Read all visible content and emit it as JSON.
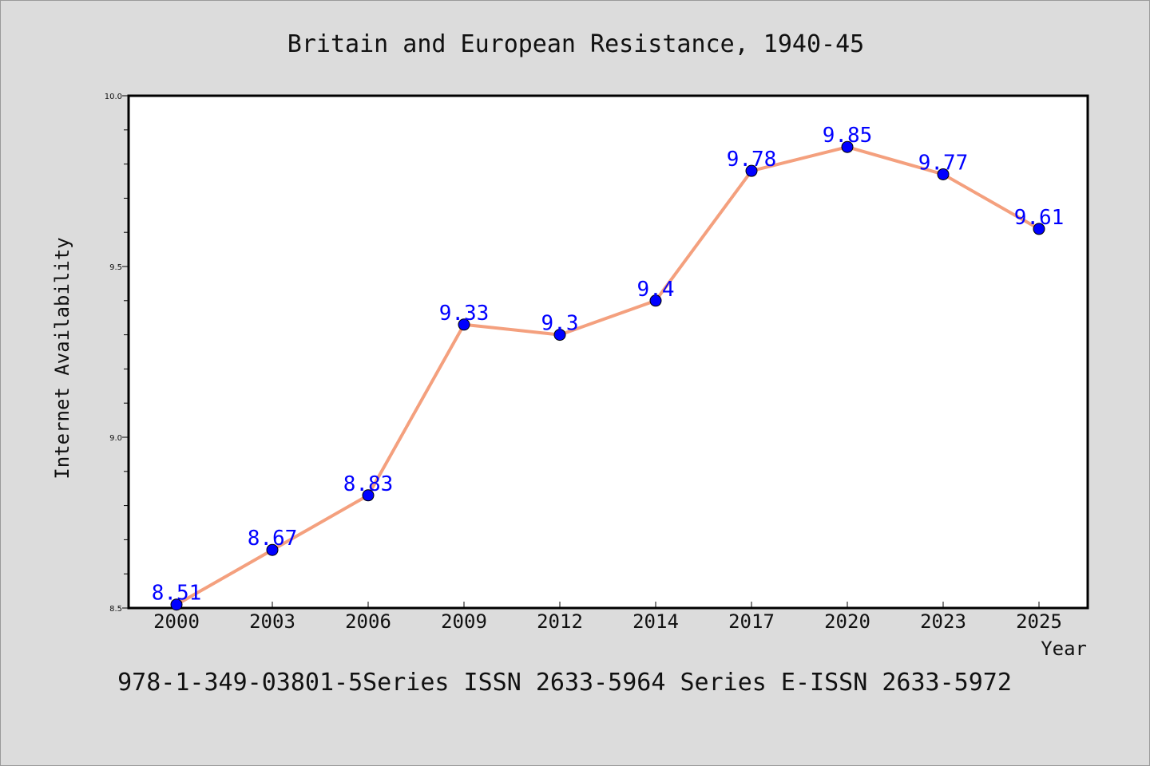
{
  "chart_data": {
    "type": "line",
    "title": "Britain and European Resistance, 1940-45",
    "xlabel": "Year",
    "ylabel": "Internet Availability",
    "categories": [
      "2000",
      "2003",
      "2006",
      "2009",
      "2012",
      "2014",
      "2017",
      "2020",
      "2023",
      "2025"
    ],
    "values": [
      8.51,
      8.67,
      8.83,
      9.33,
      9.3,
      9.4,
      9.78,
      9.85,
      9.77,
      9.61
    ],
    "data_labels": [
      "8.51",
      "8.67",
      "8.83",
      "9.33",
      "9.3",
      "9.4",
      "9.78",
      "9.85",
      "9.77",
      "9.61"
    ],
    "ylim": [
      8.5,
      10.0
    ],
    "yticks": [
      "8.5",
      "9.0",
      "9.5",
      "10.0"
    ],
    "y_minor_step": 0.1,
    "grid": false,
    "line_color": "#f4a07e",
    "marker_color": "#0000ff",
    "label_color": "#0000ff"
  },
  "footer": {
    "text": "978-1-349-03801-5Series ISSN 2633-5964 Series E-ISSN 2633-5972"
  }
}
